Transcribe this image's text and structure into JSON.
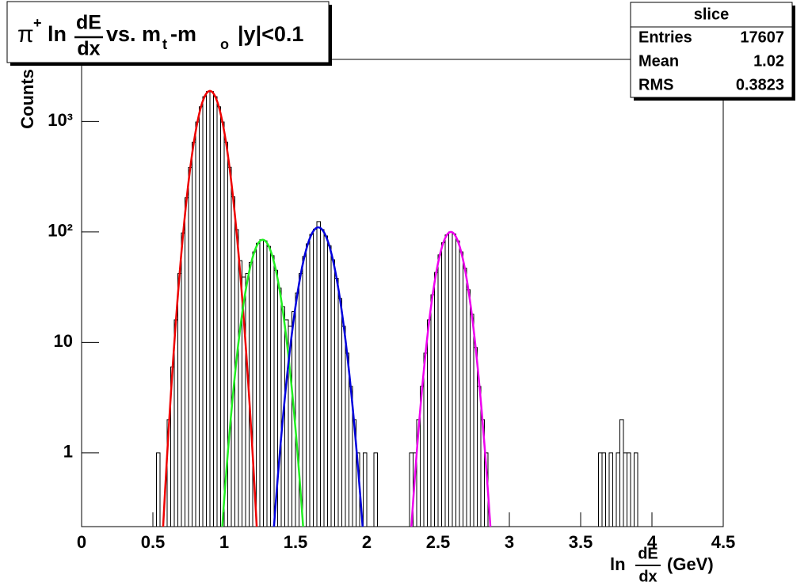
{
  "chart_data": {
    "type": "histogram",
    "title": {
      "pi": "π",
      "plus": "+",
      "ln": "ln",
      "num": "dE",
      "den": "dx",
      "vs": "vs. m",
      "t": "t",
      "dash": "-m",
      "o": "o",
      "cut": "|y|<0.1"
    },
    "xlabel": {
      "ln": "ln",
      "num": "dE",
      "den": "dx",
      "unit": "(GeV)"
    },
    "ylabel": "Counts",
    "color": "#000000",
    "log_y": true,
    "grid": false,
    "xlim": [
      0,
      4.5
    ],
    "ylim": [
      0.215,
      3650
    ],
    "xticks": [
      0,
      0.5,
      1,
      1.5,
      2,
      2.5,
      3,
      3.5,
      4,
      4.5
    ],
    "yticks": [
      1,
      10,
      {
        "value": 100,
        "label": "10²"
      },
      {
        "value": 1000,
        "label": "10³"
      }
    ],
    "bins": [
      0.5,
      0.525,
      0.55,
      0.575,
      0.6,
      0.625,
      0.65,
      0.675,
      0.7,
      0.725,
      0.75,
      0.775,
      0.8,
      0.825,
      0.85,
      0.875,
      0.9,
      0.925,
      0.95,
      0.975,
      1.0,
      1.025,
      1.05,
      1.075,
      1.1,
      1.125,
      1.15,
      1.175,
      1.2,
      1.225,
      1.25,
      1.275,
      1.3,
      1.325,
      1.35,
      1.375,
      1.4,
      1.425,
      1.45,
      1.475,
      1.5,
      1.525,
      1.55,
      1.575,
      1.6,
      1.625,
      1.65,
      1.675,
      1.7,
      1.725,
      1.75,
      1.775,
      1.8,
      1.825,
      1.85,
      1.875,
      1.9,
      1.925,
      1.95,
      1.975,
      2.0,
      2.025,
      2.05,
      2.075,
      2.1,
      2.125,
      2.15,
      2.175,
      2.2,
      2.225,
      2.25,
      2.275,
      2.3,
      2.325,
      2.35,
      2.375,
      2.4,
      2.425,
      2.45,
      2.475,
      2.5,
      2.525,
      2.55,
      2.575,
      2.6,
      2.625,
      2.65,
      2.675,
      2.7,
      2.725,
      2.75,
      2.775,
      2.8,
      2.825,
      2.85,
      2.875,
      2.9,
      2.925,
      2.95,
      2.975,
      3.0,
      3.025,
      3.05,
      3.075,
      3.1,
      3.125,
      3.15,
      3.175,
      3.2,
      3.225,
      3.25,
      3.275,
      3.3,
      3.325,
      3.35,
      3.375,
      3.4,
      3.425,
      3.45,
      3.475,
      3.5,
      3.525,
      3.55,
      3.575,
      3.6,
      3.625,
      3.65,
      3.675,
      3.7,
      3.725,
      3.75,
      3.775,
      3.8,
      3.825,
      3.85,
      3.875,
      3.9,
      3.925,
      3.95
    ],
    "values": [
      0,
      1,
      0,
      0,
      2,
      6,
      16,
      42,
      98,
      204,
      384,
      650,
      990,
      1360,
      1678,
      1865,
      1865,
      1678,
      1360,
      990,
      651,
      385,
      208,
      105,
      55,
      39,
      42,
      53,
      66,
      79,
      85,
      83,
      74,
      61,
      45,
      31,
      21,
      16,
      14,
      19,
      28,
      42,
      60,
      78,
      95,
      106,
      124,
      105,
      92,
      75,
      56,
      38,
      25,
      14,
      8,
      4,
      2,
      1,
      0,
      1,
      0,
      0,
      1,
      0,
      0,
      0,
      0,
      0,
      0,
      0,
      0,
      0,
      1,
      1,
      2,
      4,
      8,
      16,
      27,
      43,
      62,
      80,
      94,
      100,
      96,
      83,
      66,
      47,
      30,
      18,
      9,
      4,
      2,
      1,
      0,
      0,
      0,
      0,
      0,
      0,
      0,
      0,
      0,
      0,
      0,
      0,
      0,
      0,
      0,
      0,
      0,
      0,
      0,
      0,
      0,
      0,
      0,
      0,
      0,
      0,
      0,
      0,
      0,
      0,
      0,
      1,
      1,
      0,
      1,
      0,
      1,
      2,
      1,
      1,
      0,
      1,
      0,
      0
    ],
    "fits": [
      {
        "color": "#ee0000",
        "constant": 1890,
        "mean": 0.9,
        "sigma": 0.077
      },
      {
        "color": "#22ee22",
        "constant": 85,
        "mean": 1.27,
        "sigma": 0.082
      },
      {
        "color": "#0000dd",
        "constant": 110,
        "mean": 1.66,
        "sigma": 0.088
      },
      {
        "color": "#ee00ee",
        "constant": 100,
        "mean": 2.59,
        "sigma": 0.079
      }
    ],
    "stats": {
      "title": "slice",
      "rows": [
        [
          "Entries",
          17607
        ],
        [
          "Mean",
          1.02
        ],
        [
          "RMS",
          0.3823
        ]
      ]
    }
  }
}
